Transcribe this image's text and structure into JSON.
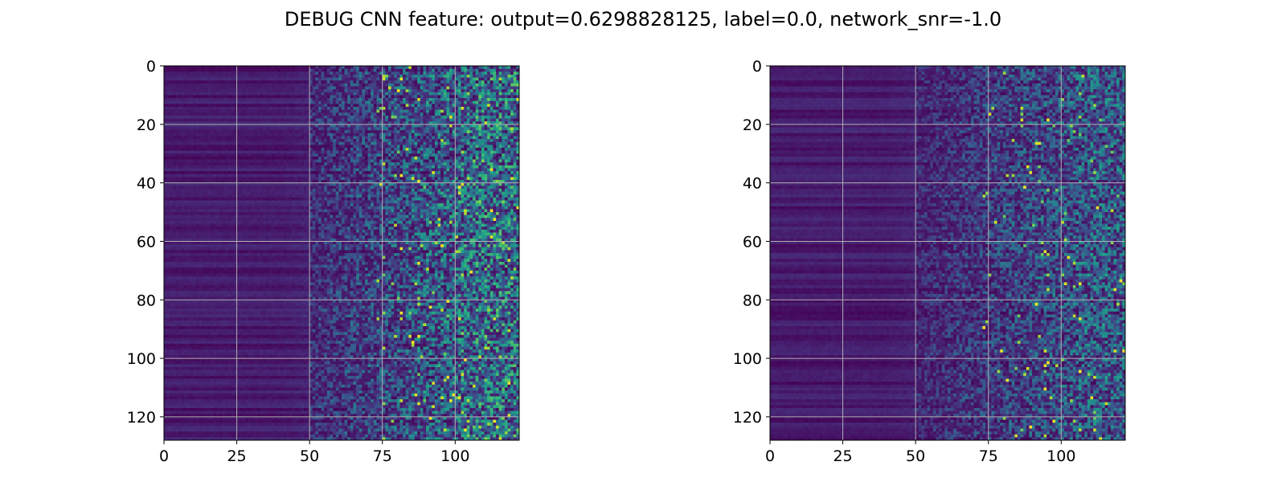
{
  "figure": {
    "title": "DEBUG CNN feature: output=0.6298828125, label=0.0, network_snr=-1.0"
  },
  "chart_data": [
    {
      "type": "heatmap",
      "colormap": "viridis",
      "rows": 128,
      "cols": 122,
      "xlim": [
        0,
        122
      ],
      "ylim": [
        128,
        0
      ],
      "xticks": [
        "0",
        "25",
        "50",
        "75",
        "100"
      ],
      "yticks": [
        "0",
        "20",
        "40",
        "60",
        "80",
        "100",
        "120"
      ],
      "grid": true,
      "pattern": "low uniform values in columns 0-50 varying by row; values rise with column index; sparse bright cells beyond column 75",
      "value_range": [
        0,
        1
      ]
    },
    {
      "type": "heatmap",
      "colormap": "viridis",
      "rows": 128,
      "cols": 122,
      "xlim": [
        0,
        122
      ],
      "ylim": [
        128,
        0
      ],
      "xticks": [
        "0",
        "25",
        "50",
        "75",
        "100"
      ],
      "yticks": [
        "0",
        "20",
        "40",
        "60",
        "80",
        "100",
        "120"
      ],
      "grid": true,
      "pattern": "low uniform values in columns 0-50; moderate noisy values beyond column 60; fewer bright cells",
      "value_range": [
        0,
        1
      ]
    }
  ],
  "colors": {
    "viridis_low": "#440154",
    "viridis_mid": "#21918c",
    "viridis_high": "#fde725",
    "grid": "#b0b0b0"
  }
}
